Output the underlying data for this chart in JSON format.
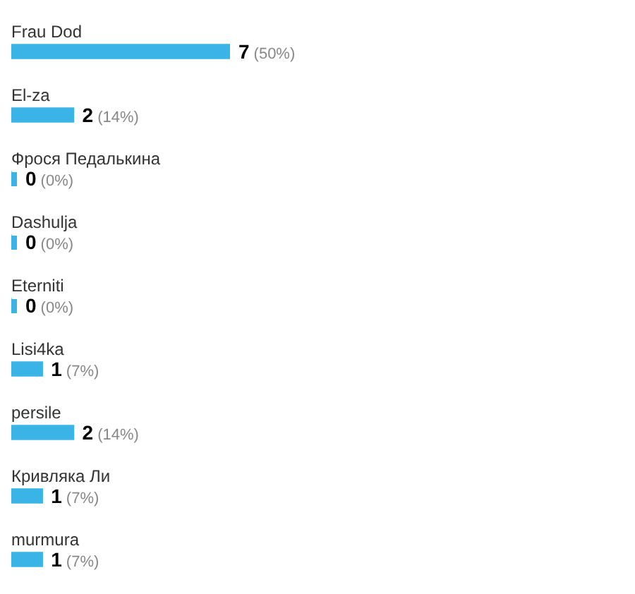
{
  "chart_data": {
    "type": "bar",
    "orientation": "horizontal",
    "categories": [
      "Frau Dod",
      "El-za",
      "Фрося Педалькина",
      "Dashulja",
      "Eterniti",
      "Lisi4ka",
      "persile",
      "Кривляка Ли",
      "murmura"
    ],
    "values": [
      7,
      2,
      0,
      0,
      0,
      1,
      2,
      1,
      1
    ],
    "value_labels": [
      "7 (50%)",
      "2 (14%)",
      "0 (0%)",
      "0 (0%)",
      "0 (0%)",
      "1 (7%)",
      "2 (14%)",
      "1 (7%)",
      "1 (7%)"
    ],
    "color": "#3ab4e6"
  }
}
